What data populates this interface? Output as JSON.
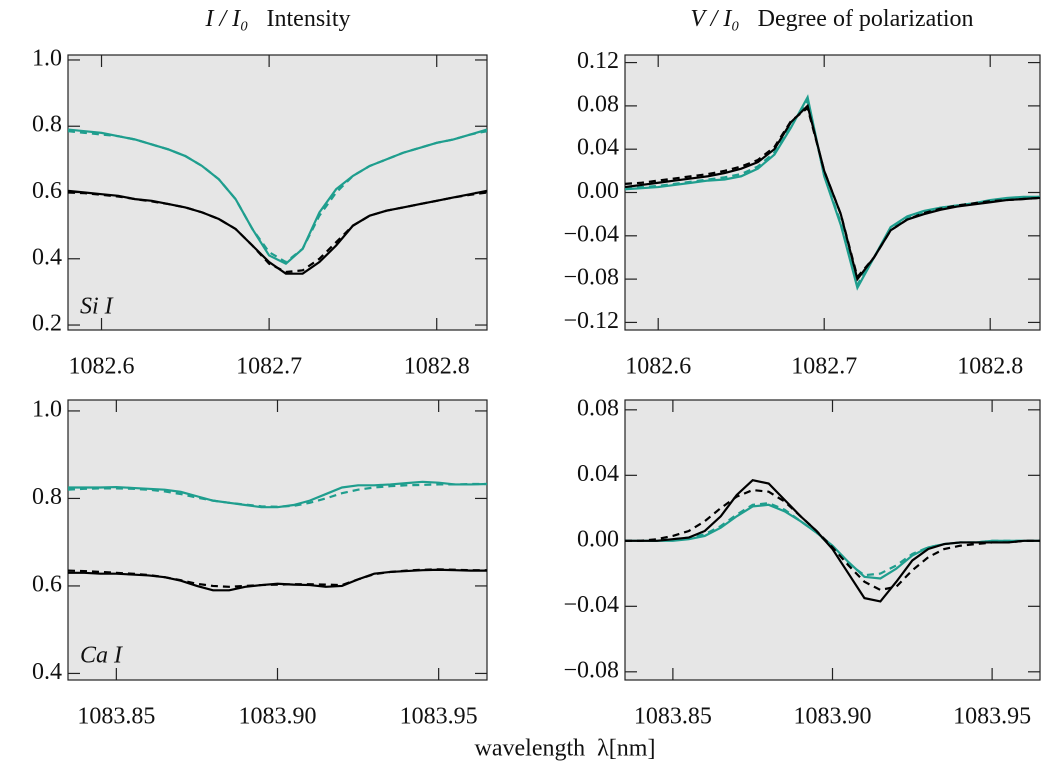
{
  "chart_data": [
    {
      "type": "line",
      "ylabel": "I / I₀",
      "title": "Intensity",
      "annotation": "Si I",
      "xlim": [
        1082.58,
        1082.83
      ],
      "xticks": [
        1082.6,
        1082.7,
        1082.8
      ],
      "ylim": [
        0.185,
        1.015
      ],
      "yticks": [
        0.2,
        0.4,
        0.6,
        0.8,
        {
          "value": 1,
          "label": "1.0"
        }
      ],
      "background": "#e6e6e6",
      "x": [
        1082.58,
        1082.59,
        1082.6,
        1082.61,
        1082.62,
        1082.63,
        1082.64,
        1082.65,
        1082.66,
        1082.67,
        1082.68,
        1082.69,
        1082.7,
        1082.71,
        1082.72,
        1082.73,
        1082.74,
        1082.75,
        1082.76,
        1082.77,
        1082.78,
        1082.79,
        1082.8,
        1082.81,
        1082.82,
        1082.83
      ],
      "series": [
        {
          "color": "#1f9e8e",
          "dashed": false,
          "values": [
            0.79,
            0.785,
            0.78,
            0.77,
            0.76,
            0.745,
            0.73,
            0.71,
            0.68,
            0.64,
            0.58,
            0.49,
            0.41,
            0.385,
            0.43,
            0.54,
            0.61,
            0.65,
            0.68,
            0.7,
            0.72,
            0.735,
            0.75,
            0.76,
            0.775,
            0.79
          ]
        },
        {
          "color": "#1f9e8e",
          "dashed": true,
          "values": [
            0.785,
            0.78,
            0.775,
            0.77,
            0.76,
            0.745,
            0.73,
            0.71,
            0.68,
            0.64,
            0.58,
            0.49,
            0.42,
            0.39,
            0.43,
            0.53,
            0.6,
            0.65,
            0.68,
            0.7,
            0.72,
            0.735,
            0.75,
            0.76,
            0.775,
            0.785
          ]
        },
        {
          "color": "#000000",
          "dashed": false,
          "values": [
            0.605,
            0.6,
            0.595,
            0.59,
            0.58,
            0.575,
            0.565,
            0.555,
            0.54,
            0.52,
            0.49,
            0.44,
            0.39,
            0.355,
            0.355,
            0.39,
            0.44,
            0.5,
            0.53,
            0.545,
            0.555,
            0.565,
            0.575,
            0.585,
            0.595,
            0.605
          ]
        },
        {
          "color": "#000000",
          "dashed": true,
          "values": [
            0.6,
            0.598,
            0.593,
            0.588,
            0.58,
            0.573,
            0.565,
            0.555,
            0.54,
            0.52,
            0.49,
            0.44,
            0.385,
            0.36,
            0.365,
            0.4,
            0.45,
            0.5,
            0.53,
            0.545,
            0.555,
            0.565,
            0.575,
            0.585,
            0.593,
            0.6
          ]
        }
      ]
    },
    {
      "type": "line",
      "ylabel": "V / I₀",
      "title": "Degree of polarization",
      "xlim": [
        1082.58,
        1082.83
      ],
      "xticks": [
        1082.6,
        1082.7,
        1082.8
      ],
      "ylim": [
        -0.127,
        0.127
      ],
      "yticks": [
        {
          "value": -0.12,
          "label": "−0.12"
        },
        {
          "value": -0.08,
          "label": "−0.08"
        },
        {
          "value": -0.04,
          "label": "−0.04"
        },
        {
          "value": 0,
          "label": "0.00"
        },
        0.04,
        0.08,
        0.12
      ],
      "background": "#e6e6e6",
      "x": [
        1082.58,
        1082.59,
        1082.6,
        1082.61,
        1082.62,
        1082.63,
        1082.64,
        1082.65,
        1082.66,
        1082.67,
        1082.68,
        1082.69,
        1082.7,
        1082.71,
        1082.72,
        1082.73,
        1082.74,
        1082.75,
        1082.76,
        1082.77,
        1082.78,
        1082.79,
        1082.8,
        1082.81,
        1082.82,
        1082.83
      ],
      "series": [
        {
          "color": "#1f9e8e",
          "dashed": false,
          "values": [
            0.003,
            0.004,
            0.005,
            0.007,
            0.009,
            0.011,
            0.012,
            0.015,
            0.022,
            0.035,
            0.06,
            0.088,
            0.015,
            -0.03,
            -0.088,
            -0.06,
            -0.032,
            -0.022,
            -0.017,
            -0.014,
            -0.012,
            -0.01,
            -0.007,
            -0.005,
            -0.004,
            -0.004
          ]
        },
        {
          "color": "#1f9e8e",
          "dashed": true,
          "values": [
            0.004,
            0.005,
            0.006,
            0.008,
            0.01,
            0.012,
            0.014,
            0.017,
            0.024,
            0.037,
            0.062,
            0.085,
            0.016,
            -0.028,
            -0.085,
            -0.06,
            -0.033,
            -0.023,
            -0.018,
            -0.014,
            -0.012,
            -0.01,
            -0.008,
            -0.006,
            -0.005,
            -0.004
          ]
        },
        {
          "color": "#000000",
          "dashed": false,
          "values": [
            0.005,
            0.007,
            0.009,
            0.011,
            0.013,
            0.015,
            0.018,
            0.022,
            0.028,
            0.04,
            0.065,
            0.08,
            0.02,
            -0.02,
            -0.08,
            -0.06,
            -0.035,
            -0.025,
            -0.02,
            -0.016,
            -0.013,
            -0.011,
            -0.009,
            -0.007,
            -0.006,
            -0.005
          ]
        },
        {
          "color": "#000000",
          "dashed": true,
          "values": [
            0.008,
            0.009,
            0.011,
            0.013,
            0.015,
            0.017,
            0.02,
            0.024,
            0.03,
            0.042,
            0.066,
            0.078,
            0.02,
            -0.02,
            -0.078,
            -0.06,
            -0.035,
            -0.025,
            -0.019,
            -0.015,
            -0.012,
            -0.01,
            -0.008,
            -0.007,
            -0.006,
            -0.005
          ]
        }
      ]
    },
    {
      "type": "line",
      "annotation": "Ca I",
      "xlabel": "wavelength  λ[nm]",
      "xlim": [
        1083.835,
        1083.965
      ],
      "xticks": [
        1083.85,
        {
          "value": 1083.9,
          "label": "1083.90"
        },
        1083.95
      ],
      "ylim": [
        0.385,
        1.025
      ],
      "yticks": [
        0.4,
        0.6,
        0.8,
        {
          "value": 1,
          "label": "1.0"
        }
      ],
      "background": "#e6e6e6",
      "x": [
        1083.835,
        1083.84,
        1083.845,
        1083.85,
        1083.855,
        1083.86,
        1083.865,
        1083.87,
        1083.875,
        1083.88,
        1083.885,
        1083.89,
        1083.895,
        1083.9,
        1083.905,
        1083.91,
        1083.915,
        1083.92,
        1083.925,
        1083.93,
        1083.935,
        1083.94,
        1083.945,
        1083.95,
        1083.955,
        1083.96,
        1083.965
      ],
      "series": [
        {
          "color": "#1f9e8e",
          "dashed": false,
          "values": [
            0.825,
            0.825,
            0.825,
            0.826,
            0.824,
            0.822,
            0.82,
            0.815,
            0.805,
            0.795,
            0.79,
            0.785,
            0.78,
            0.78,
            0.785,
            0.795,
            0.81,
            0.825,
            0.83,
            0.83,
            0.832,
            0.835,
            0.838,
            0.836,
            0.832,
            0.832,
            0.833
          ]
        },
        {
          "color": "#1f9e8e",
          "dashed": true,
          "values": [
            0.82,
            0.822,
            0.823,
            0.823,
            0.822,
            0.82,
            0.816,
            0.81,
            0.802,
            0.795,
            0.79,
            0.786,
            0.782,
            0.781,
            0.783,
            0.79,
            0.8,
            0.812,
            0.82,
            0.825,
            0.828,
            0.83,
            0.831,
            0.832,
            0.832,
            0.833,
            0.833
          ]
        },
        {
          "color": "#000000",
          "dashed": false,
          "values": [
            0.63,
            0.63,
            0.628,
            0.628,
            0.626,
            0.624,
            0.62,
            0.612,
            0.6,
            0.59,
            0.59,
            0.598,
            0.602,
            0.605,
            0.603,
            0.602,
            0.598,
            0.6,
            0.615,
            0.628,
            0.632,
            0.634,
            0.636,
            0.637,
            0.636,
            0.635,
            0.635
          ]
        },
        {
          "color": "#000000",
          "dashed": true,
          "values": [
            0.635,
            0.634,
            0.632,
            0.63,
            0.628,
            0.625,
            0.62,
            0.613,
            0.605,
            0.6,
            0.598,
            0.6,
            0.602,
            0.603,
            0.604,
            0.604,
            0.603,
            0.602,
            0.615,
            0.627,
            0.632,
            0.635,
            0.637,
            0.638,
            0.637,
            0.636,
            0.636
          ]
        }
      ]
    },
    {
      "type": "line",
      "xlim": [
        1083.835,
        1083.965
      ],
      "xticks": [
        1083.85,
        {
          "value": 1083.9,
          "label": "1083.90"
        },
        1083.95
      ],
      "ylim": [
        -0.085,
        0.086
      ],
      "yticks": [
        {
          "value": -0.08,
          "label": "−0.08"
        },
        {
          "value": -0.04,
          "label": "−0.04"
        },
        {
          "value": 0,
          "label": "0.00"
        },
        0.04,
        0.08
      ],
      "background": "#e6e6e6",
      "x": [
        1083.835,
        1083.84,
        1083.845,
        1083.85,
        1083.855,
        1083.86,
        1083.865,
        1083.87,
        1083.875,
        1083.88,
        1083.885,
        1083.89,
        1083.895,
        1083.9,
        1083.905,
        1083.91,
        1083.915,
        1083.92,
        1083.925,
        1083.93,
        1083.935,
        1083.94,
        1083.945,
        1083.95,
        1083.955,
        1083.96,
        1083.965
      ],
      "series": [
        {
          "color": "#1f9e8e",
          "dashed": false,
          "values": [
            0,
            0,
            0,
            0,
            0.001,
            0.003,
            0.008,
            0.015,
            0.021,
            0.022,
            0.018,
            0.012,
            0.005,
            -0.003,
            -0.013,
            -0.022,
            -0.023,
            -0.017,
            -0.009,
            -0.004,
            -0.002,
            -0.001,
            -0.001,
            0,
            0,
            0,
            0
          ]
        },
        {
          "color": "#1f9e8e",
          "dashed": true,
          "values": [
            0,
            0,
            0,
            0.001,
            0.002,
            0.004,
            0.009,
            0.016,
            0.022,
            0.023,
            0.019,
            0.012,
            0.005,
            -0.004,
            -0.014,
            -0.021,
            -0.02,
            -0.015,
            -0.008,
            -0.004,
            -0.002,
            -0.001,
            -0.001,
            0,
            0,
            0,
            0
          ]
        },
        {
          "color": "#000000",
          "dashed": false,
          "values": [
            0,
            0,
            0,
            0.001,
            0.002,
            0.006,
            0.015,
            0.028,
            0.037,
            0.035,
            0.025,
            0.015,
            0.006,
            -0.005,
            -0.02,
            -0.035,
            -0.037,
            -0.025,
            -0.012,
            -0.005,
            -0.002,
            -0.001,
            -0.001,
            -0.001,
            -0.001,
            0,
            0
          ]
        },
        {
          "color": "#000000",
          "dashed": true,
          "values": [
            0,
            0,
            0.001,
            0.003,
            0.006,
            0.012,
            0.02,
            0.027,
            0.031,
            0.03,
            0.024,
            0.015,
            0.006,
            -0.004,
            -0.015,
            -0.025,
            -0.03,
            -0.028,
            -0.018,
            -0.01,
            -0.005,
            -0.003,
            -0.002,
            -0.001,
            -0.001,
            0,
            0
          ]
        }
      ]
    }
  ]
}
